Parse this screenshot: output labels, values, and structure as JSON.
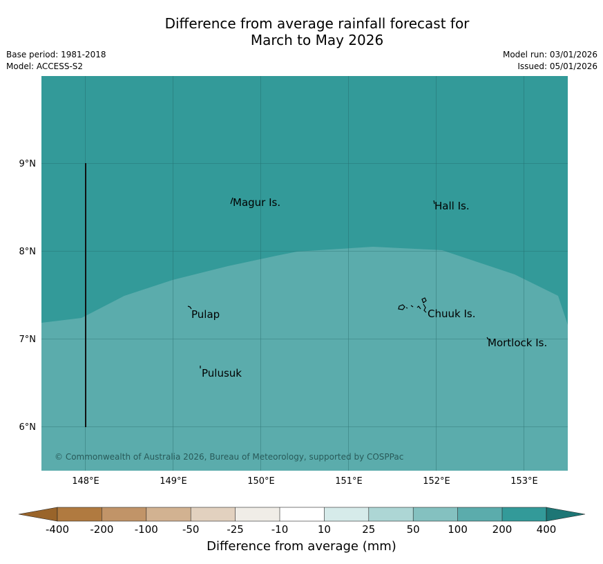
{
  "title": {
    "line1": "Difference from average rainfall forecast for",
    "line2": "March to May 2026"
  },
  "info": {
    "base_period": "Base period: 1981-2018",
    "model": "Model: ACCESS-S2",
    "model_run": "Model run: 03/01/2026",
    "issued": "Issued: 05/01/2026"
  },
  "map": {
    "lat_labels": [
      "9°N",
      "8°N",
      "7°N",
      "6°N"
    ],
    "lon_labels": [
      "148°E",
      "149°E",
      "150°E",
      "151°E",
      "152°E",
      "153°E"
    ],
    "place_labels": {
      "magur": "Magur Is.",
      "hall": "Hall Is.",
      "pulap": "Pulap",
      "chuuk": "Chuuk Is.",
      "mortlock": "Mortlock Is.",
      "pulusuk": "Pulusuk"
    },
    "copyright": "© Commonwealth of Australia 2026, Bureau of Meteorology, supported by COSPPac",
    "colors": {
      "wetter_200_400": "#339a99",
      "wetter_100_200": "#5bacac",
      "grid": "#1f5f5e"
    }
  },
  "legend": {
    "title": "Difference from average (mm)",
    "ticks": [
      "-400",
      "-200",
      "-100",
      "-50",
      "-25",
      "-10",
      "10",
      "25",
      "50",
      "100",
      "200",
      "400"
    ],
    "colors": {
      "below_min": "#99642a",
      "c1": "#b07a40",
      "c2": "#c19468",
      "c3": "#d2b291",
      "c4": "#e2d1bf",
      "c5": "#f0ede7",
      "c6": "#ffffff",
      "c7": "#d6ebea",
      "c8": "#add6d5",
      "c9": "#84c1c0",
      "c10": "#5bacac",
      "c11": "#339a99",
      "above_max": "#1d7675"
    }
  }
}
